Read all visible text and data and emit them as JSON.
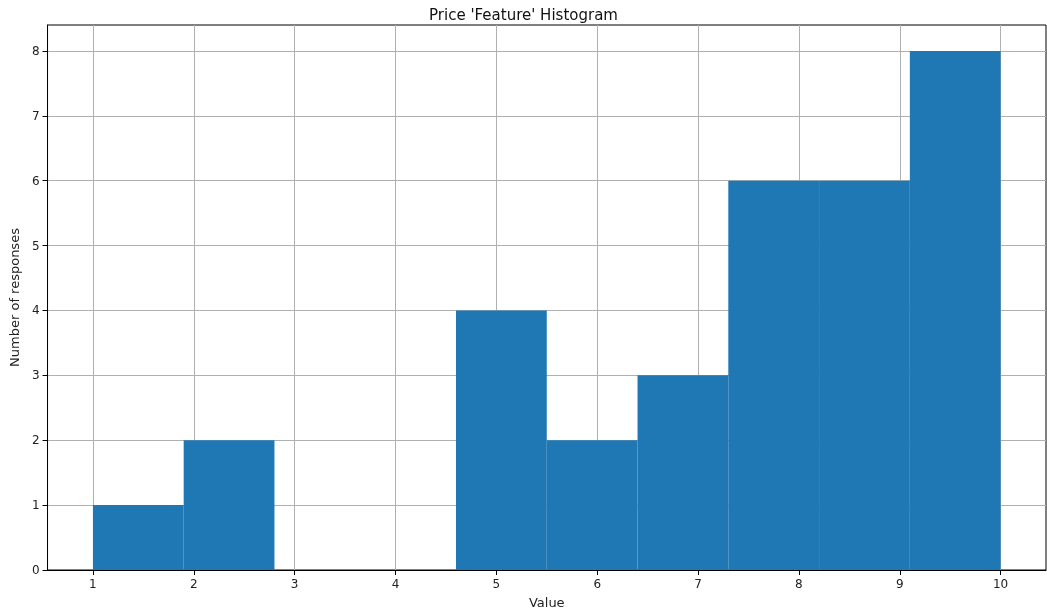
{
  "chart_data": {
    "type": "histogram",
    "title": "Price 'Feature' Histogram",
    "xlabel": "Value",
    "ylabel": "Number of responses",
    "bins": [
      1,
      1.9,
      2.8,
      3.7,
      4.6,
      5.5,
      6.4,
      7.3,
      8.2,
      9.1,
      10
    ],
    "values": [
      1,
      2,
      0,
      0,
      4,
      2,
      3,
      6,
      6,
      8
    ],
    "color": "#1f77b4",
    "xlim": [
      0.55,
      10.45
    ],
    "xticks": [
      1,
      2,
      3,
      4,
      5,
      6,
      7,
      8,
      9,
      10
    ],
    "ylim": [
      0,
      8.4
    ],
    "yticks": [
      0,
      1,
      2,
      3,
      4,
      5,
      6,
      7,
      8
    ],
    "grid": true
  }
}
